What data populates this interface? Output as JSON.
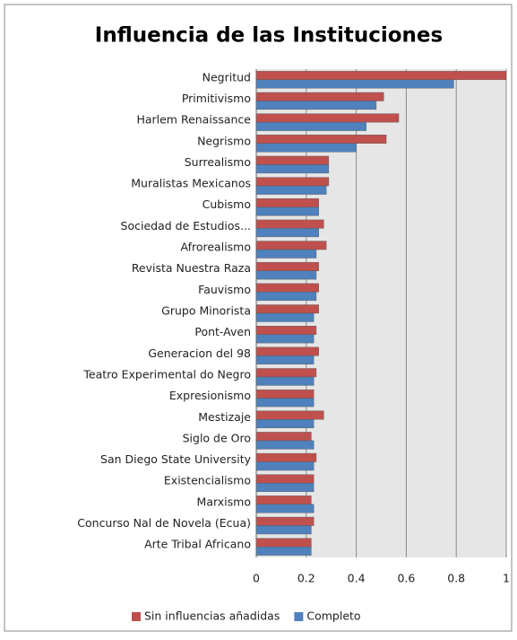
{
  "chart_data": {
    "type": "bar",
    "orientation": "horizontal",
    "title": "Influencia de las Instituciones",
    "categories": [
      "Negritud",
      "Primitivismo",
      "Harlem Renaissance",
      "Negrismo",
      "Surrealismo",
      "Muralistas Mexicanos",
      "Cubismo",
      "Sociedad de Estudios...",
      "Afrorealismo",
      "Revista Nuestra Raza",
      "Fauvismo",
      "Grupo Minorista",
      "Pont-Aven",
      "Generacion del 98",
      "Teatro Experimental do Negro",
      "Expresionismo",
      "Mestizaje",
      "Siglo de Oro",
      "San Diego State University",
      "Existencialismo",
      "Marxismo",
      "Concurso Nal de Novela (Ecua)",
      "Arte Tribal Africano"
    ],
    "series": [
      {
        "name": "Sin influencias añadidas",
        "color": "#c0504d",
        "values": [
          1.0,
          0.51,
          0.57,
          0.52,
          0.29,
          0.29,
          0.25,
          0.27,
          0.28,
          0.25,
          0.25,
          0.25,
          0.24,
          0.25,
          0.24,
          0.23,
          0.27,
          0.22,
          0.24,
          0.23,
          0.22,
          0.23,
          0.22
        ]
      },
      {
        "name": "Completo",
        "color": "#4f81bd",
        "values": [
          0.79,
          0.48,
          0.44,
          0.4,
          0.29,
          0.28,
          0.25,
          0.25,
          0.24,
          0.24,
          0.24,
          0.23,
          0.23,
          0.23,
          0.23,
          0.23,
          0.23,
          0.23,
          0.23,
          0.23,
          0.23,
          0.22,
          0.22
        ]
      }
    ],
    "xlim": [
      0,
      1
    ],
    "xticks": [
      0,
      0.2,
      0.4,
      0.6,
      0.8,
      1
    ],
    "grid": true,
    "legend": "bottom"
  }
}
